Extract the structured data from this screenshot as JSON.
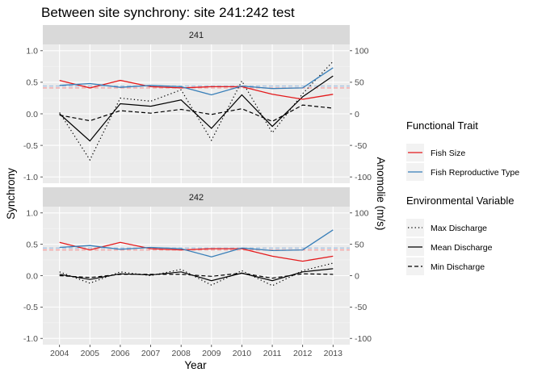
{
  "chart_data": {
    "type": "line",
    "title": "Between site synchrony: site 241:242 test",
    "xlabel": "Year",
    "ylabel": "Synchrony",
    "y2label": "Anomolie (m/s)",
    "x": [
      2004,
      2005,
      2006,
      2007,
      2008,
      2009,
      2010,
      2011,
      2012,
      2013
    ],
    "ylim": [
      -1.1,
      1.1
    ],
    "yticks": [
      -1.0,
      -0.5,
      0.0,
      0.5,
      1.0
    ],
    "ytick_labels": [
      "-1.0",
      "-0.5",
      "0.0",
      "0.5",
      "1.0"
    ],
    "y2lim": [
      -110,
      110
    ],
    "y2ticks": [
      -100,
      -50,
      0,
      50,
      100
    ],
    "y2tick_labels": [
      "-100",
      "-50",
      "0",
      "50",
      "100"
    ],
    "grid": true,
    "panels": [
      {
        "label": "241",
        "reference_lines": [
          {
            "color": "#f4a6a6",
            "y": 0.41
          },
          {
            "color": "#a9c4e3",
            "y": 0.44
          }
        ],
        "trait_series": [
          {
            "name": "Fish Size",
            "color": "#e41a1c",
            "values": [
              0.53,
              0.41,
              0.53,
              0.43,
              0.41,
              0.43,
              0.43,
              0.31,
              0.23,
              0.31
            ]
          },
          {
            "name": "Fish Reproductive Type",
            "color": "#377eb8",
            "values": [
              0.45,
              0.48,
              0.42,
              0.45,
              0.43,
              0.3,
              0.44,
              0.4,
              0.41,
              0.73
            ]
          }
        ],
        "env_series": [
          {
            "name": "Max Discharge",
            "dash": "dotted",
            "values": [
              2,
              -73,
              25,
              20,
              38,
              -42,
              52,
              -30,
              32,
              83
            ]
          },
          {
            "name": "Mean Discharge",
            "dash": "solid",
            "values": [
              0,
              -43,
              16,
              12,
              22,
              -23,
              30,
              -20,
              27,
              60
            ]
          },
          {
            "name": "Min Discharge",
            "dash": "dashed",
            "values": [
              -2,
              -11,
              5,
              1,
              7,
              -1,
              8,
              -12,
              14,
              9
            ]
          }
        ]
      },
      {
        "label": "242",
        "reference_lines": [
          {
            "color": "#f4a6a6",
            "y": 0.41
          },
          {
            "color": "#a9c4e3",
            "y": 0.44
          }
        ],
        "trait_series": [
          {
            "name": "Fish Size",
            "color": "#e41a1c",
            "values": [
              0.53,
              0.41,
              0.53,
              0.43,
              0.41,
              0.43,
              0.43,
              0.31,
              0.23,
              0.31
            ]
          },
          {
            "name": "Fish Reproductive Type",
            "color": "#377eb8",
            "values": [
              0.45,
              0.48,
              0.42,
              0.45,
              0.43,
              0.3,
              0.44,
              0.4,
              0.41,
              0.73
            ]
          }
        ],
        "env_series": [
          {
            "name": "Max Discharge",
            "dash": "dotted",
            "values": [
              6,
              -12,
              6,
              0,
              10,
              -15,
              8,
              -16,
              8,
              20
            ]
          },
          {
            "name": "Mean Discharge",
            "dash": "solid",
            "values": [
              2,
              -6,
              3,
              1,
              6,
              -8,
              4,
              -8,
              6,
              11
            ]
          },
          {
            "name": "Min Discharge",
            "dash": "dashed",
            "values": [
              0,
              -3,
              2,
              2,
              2,
              -1,
              4,
              -4,
              3,
              2
            ]
          }
        ]
      }
    ],
    "legends": [
      {
        "title": "Functional Trait",
        "entries": [
          {
            "label": "Fish Size",
            "color": "#e41a1c",
            "dash": "solid"
          },
          {
            "label": "Fish Reproductive Type",
            "color": "#377eb8",
            "dash": "solid"
          }
        ]
      },
      {
        "title": "Environmental Variable",
        "entries": [
          {
            "label": "Max Discharge",
            "color": "#000000",
            "dash": "dotted"
          },
          {
            "label": "Mean Discharge",
            "color": "#000000",
            "dash": "solid"
          },
          {
            "label": "Min Discharge",
            "color": "#000000",
            "dash": "dashed"
          }
        ]
      }
    ],
    "legend_position": "right"
  }
}
